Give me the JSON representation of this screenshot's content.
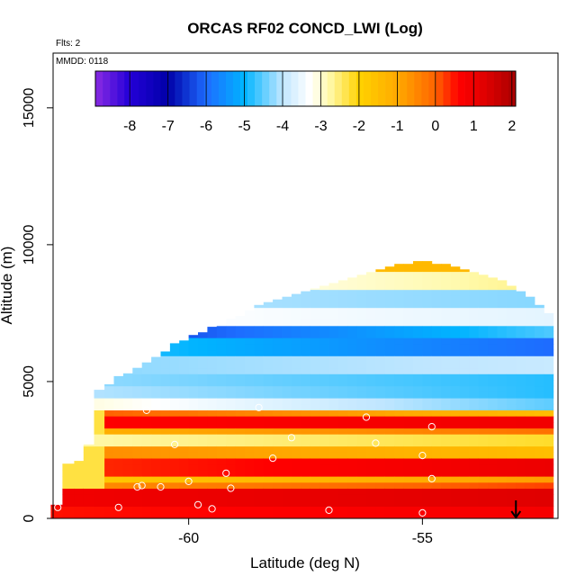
{
  "chart_data": {
    "type": "heatmap",
    "title": "ORCAS RF02 CONCD_LWI (Log)",
    "flights_label": "Flts: 2",
    "date_label": "MMDD: 0118",
    "xlabel": "Latitude (deg N)",
    "ylabel": "Altitude (m)",
    "xlim": [
      -62.9,
      -52.1
    ],
    "ylim": [
      0,
      17000
    ],
    "x_ticks": [
      -60,
      -55
    ],
    "x_tick_labels": [
      "-60",
      "-55"
    ],
    "y_ticks": [
      0,
      5000,
      10000,
      15000
    ],
    "y_tick_labels": [
      "0",
      "5000",
      "10000",
      "15000"
    ],
    "colorbar": {
      "min": -8.9,
      "max": 2.1,
      "ticks": [
        -8,
        -7,
        -6,
        -5,
        -4,
        -3,
        -2,
        -1,
        0,
        1,
        2
      ],
      "tick_labels": [
        "-8",
        "-7",
        "-6",
        "-5",
        "-4",
        "-3",
        "-2",
        "-1",
        "0",
        "1",
        "2"
      ],
      "stops": [
        {
          "v": -8.9,
          "c": "#8a2be2"
        },
        {
          "v": -8.0,
          "c": "#2400d8"
        },
        {
          "v": -7.0,
          "c": "#0000a8"
        },
        {
          "v": -6.0,
          "c": "#1e6cff"
        },
        {
          "v": -5.0,
          "c": "#00b4ff"
        },
        {
          "v": -4.0,
          "c": "#bfe6ff"
        },
        {
          "v": -3.3,
          "c": "#ffffff"
        },
        {
          "v": -2.8,
          "c": "#fffab0"
        },
        {
          "v": -2.0,
          "c": "#ffd200"
        },
        {
          "v": -1.0,
          "c": "#ffaa00"
        },
        {
          "v": 0.0,
          "c": "#ff6400"
        },
        {
          "v": 0.6,
          "c": "#ff0000"
        },
        {
          "v": 1.3,
          "c": "#e00000"
        },
        {
          "v": 2.1,
          "c": "#a80000"
        }
      ]
    },
    "grid": false,
    "takeoff_marker_latitude": -53.0,
    "flight_track": [
      {
        "lat": -62.8,
        "alt": 400
      },
      {
        "lat": -61.1,
        "alt": 1150
      },
      {
        "lat": -59.2,
        "alt": 1650
      },
      {
        "lat": -58.2,
        "alt": 2200
      },
      {
        "lat": -56.0,
        "alt": 2750
      },
      {
        "lat": -54.8,
        "alt": 3350
      },
      {
        "lat": -56.2,
        "alt": 3700
      },
      {
        "lat": -58.5,
        "alt": 4050
      },
      {
        "lat": -60.9,
        "alt": 3950
      },
      {
        "lat": -60.3,
        "alt": 2700
      },
      {
        "lat": -61.0,
        "alt": 1200
      },
      {
        "lat": -61.5,
        "alt": 400
      },
      {
        "lat": -59.5,
        "alt": 350
      },
      {
        "lat": -57.0,
        "alt": 300
      },
      {
        "lat": -55.0,
        "alt": 200
      },
      {
        "lat": -54.8,
        "alt": 1450
      },
      {
        "lat": -55.0,
        "alt": 2300
      },
      {
        "lat": -57.8,
        "alt": 2950
      },
      {
        "lat": -59.1,
        "alt": 1100
      },
      {
        "lat": -59.8,
        "alt": 500
      },
      {
        "lat": -60.0,
        "alt": 1350
      },
      {
        "lat": -60.6,
        "alt": 1150
      }
    ],
    "bands": [
      {
        "lo": 0,
        "hi": 500,
        "vb": 0.5,
        "vt": 0.8
      },
      {
        "lo": 500,
        "hi": 1050,
        "vb": 0.9,
        "vt": 1.3
      },
      {
        "lo": 1050,
        "hi": 1300,
        "vb": -0.6,
        "vt": 0.2
      },
      {
        "lo": 1300,
        "hi": 1650,
        "vb": -1.8,
        "vt": -0.8
      },
      {
        "lo": 1650,
        "hi": 2100,
        "vb": 0.3,
        "vt": 1.0
      },
      {
        "lo": 2100,
        "hi": 2550,
        "vb": -0.5,
        "vt": -1.5
      },
      {
        "lo": 2550,
        "hi": 3000,
        "vb": -2.8,
        "vt": -2.2
      },
      {
        "lo": 3000,
        "hi": 3350,
        "vb": -1.2,
        "vt": -0.2
      },
      {
        "lo": 3350,
        "hi": 3700,
        "vb": 0.6,
        "vt": 0.9
      },
      {
        "lo": 3700,
        "hi": 4050,
        "vb": 0.2,
        "vt": -1.5
      },
      {
        "lo": 4050,
        "hi": 4400,
        "vb": -3.0,
        "vt": -4.5
      },
      {
        "lo": 4400,
        "hi": 4800,
        "vb": -4.0,
        "vt": -4.8
      },
      {
        "lo": 4800,
        "hi": 5200,
        "vb": -4.2,
        "vt": -4.8
      },
      {
        "lo": 5200,
        "hi": 5900,
        "vb": -4.3,
        "vt": -3.9
      },
      {
        "lo": 5900,
        "hi": 6500,
        "vb": -4.6,
        "vt": -6.0
      },
      {
        "lo": 6500,
        "hi": 7000,
        "vb": -6.8,
        "vt": -4.6
      },
      {
        "lo": 7000,
        "hi": 7700,
        "vb": -3.2,
        "vt": -3.6
      },
      {
        "lo": 7700,
        "hi": 8300,
        "vb": -4.0,
        "vt": -4.3
      },
      {
        "lo": 8300,
        "hi": 9000,
        "vb": -3.6,
        "vt": -2.6
      },
      {
        "lo": 9000,
        "hi": 9500,
        "vb": -1.6,
        "vt": -1.3
      }
    ],
    "columns": [
      {
        "lat": -62.85,
        "top": 500
      },
      {
        "lat": -62.55,
        "top": 2000
      },
      {
        "lat": -62.35,
        "top": 2100
      },
      {
        "lat": -62.15,
        "top": 2700
      },
      {
        "lat": -61.9,
        "top": 4700
      },
      {
        "lat": -61.7,
        "top": 4900
      },
      {
        "lat": -61.5,
        "top": 5200
      },
      {
        "lat": -61.3,
        "top": 5300
      },
      {
        "lat": -61.1,
        "top": 5500
      },
      {
        "lat": -60.9,
        "top": 5700
      },
      {
        "lat": -60.7,
        "top": 5900
      },
      {
        "lat": -60.5,
        "top": 6100
      },
      {
        "lat": -60.3,
        "top": 6400
      },
      {
        "lat": -60.1,
        "top": 6500
      },
      {
        "lat": -59.9,
        "top": 6700
      },
      {
        "lat": -59.7,
        "top": 6800
      },
      {
        "lat": -59.5,
        "top": 7000
      },
      {
        "lat": -59.3,
        "top": 7100
      },
      {
        "lat": -59.1,
        "top": 7300
      },
      {
        "lat": -58.9,
        "top": 7400
      },
      {
        "lat": -58.7,
        "top": 7600
      },
      {
        "lat": -58.5,
        "top": 7800
      },
      {
        "lat": -58.3,
        "top": 7900
      },
      {
        "lat": -58.1,
        "top": 8000
      },
      {
        "lat": -57.9,
        "top": 8100
      },
      {
        "lat": -57.7,
        "top": 8200
      },
      {
        "lat": -57.5,
        "top": 8300
      },
      {
        "lat": -57.3,
        "top": 8400
      },
      {
        "lat": -57.1,
        "top": 8500
      },
      {
        "lat": -56.9,
        "top": 8600
      },
      {
        "lat": -56.7,
        "top": 8700
      },
      {
        "lat": -56.5,
        "top": 8800
      },
      {
        "lat": -56.3,
        "top": 8900
      },
      {
        "lat": -56.1,
        "top": 9000
      },
      {
        "lat": -55.9,
        "top": 9100
      },
      {
        "lat": -55.7,
        "top": 9200
      },
      {
        "lat": -55.5,
        "top": 9300
      },
      {
        "lat": -55.3,
        "top": 9300
      },
      {
        "lat": -55.1,
        "top": 9400
      },
      {
        "lat": -54.9,
        "top": 9400
      },
      {
        "lat": -54.7,
        "top": 9300
      },
      {
        "lat": -54.5,
        "top": 9300
      },
      {
        "lat": -54.3,
        "top": 9200
      },
      {
        "lat": -54.1,
        "top": 9100
      },
      {
        "lat": -53.9,
        "top": 9000
      },
      {
        "lat": -53.7,
        "top": 8900
      },
      {
        "lat": -53.5,
        "top": 8800
      },
      {
        "lat": -53.3,
        "top": 8700
      },
      {
        "lat": -53.1,
        "top": 8500
      },
      {
        "lat": -52.9,
        "top": 8300
      },
      {
        "lat": -52.7,
        "top": 8100
      },
      {
        "lat": -52.5,
        "top": 7800
      },
      {
        "lat": -52.3,
        "top": 7500
      }
    ]
  }
}
